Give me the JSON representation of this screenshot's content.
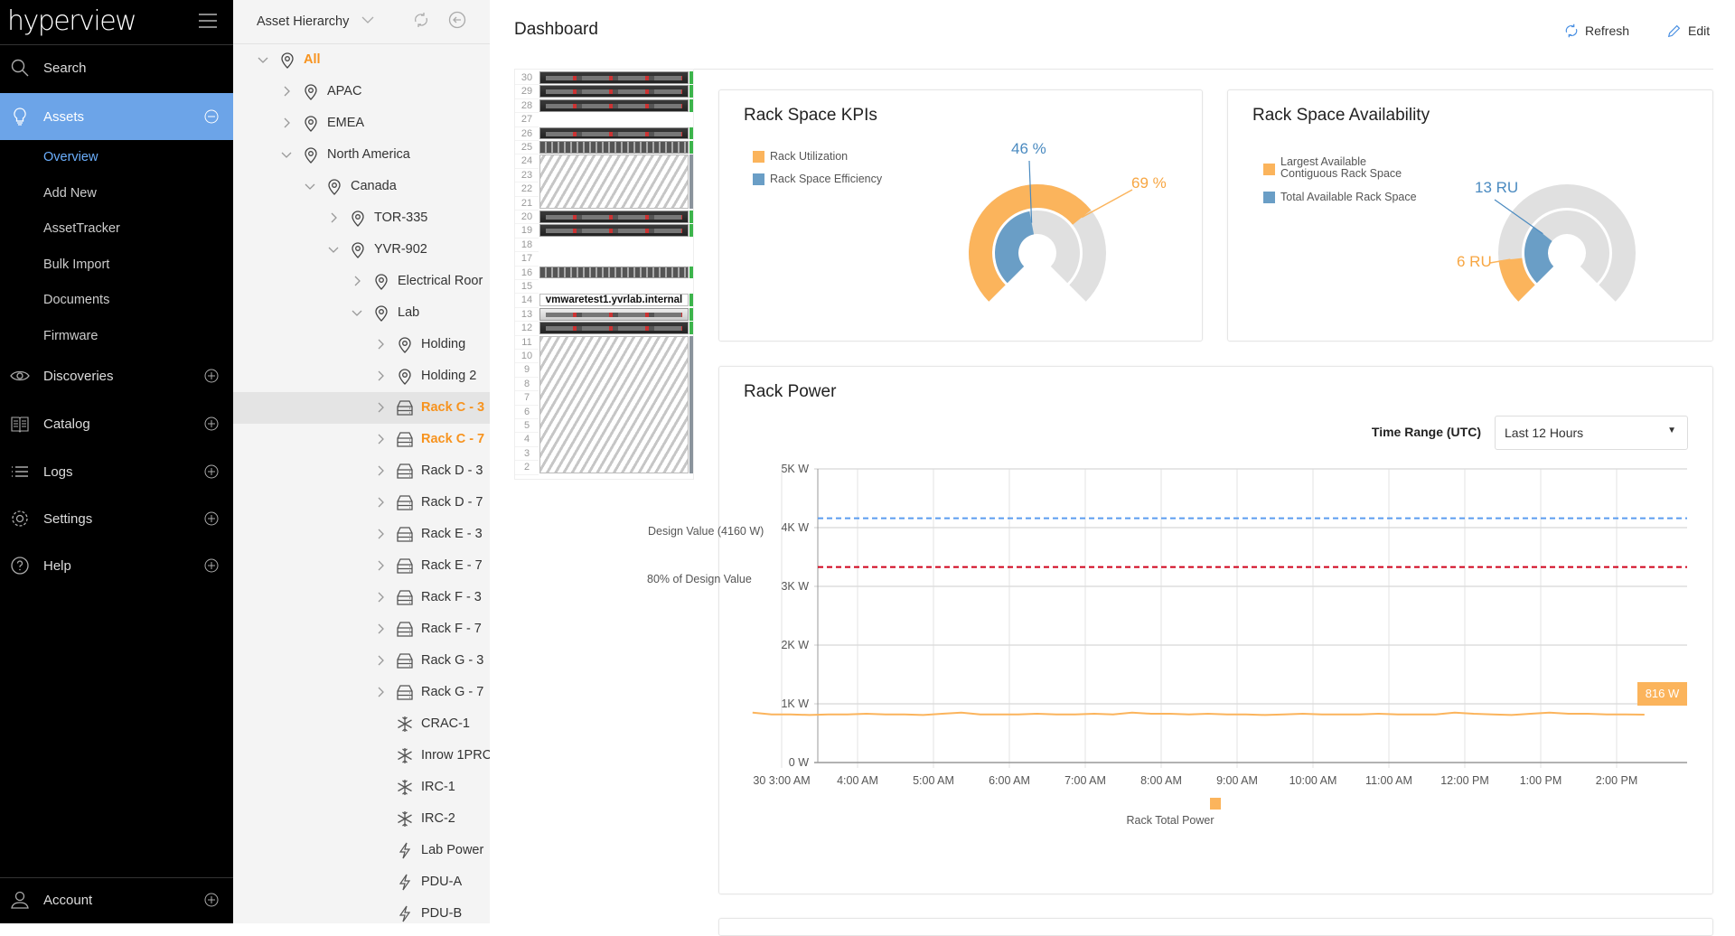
{
  "app": {
    "logo": "hyperview"
  },
  "sidebar": {
    "items": [
      {
        "label": "Search",
        "icon": "search-icon"
      },
      {
        "label": "Assets",
        "icon": "lightbulb-icon",
        "active": true
      },
      {
        "label": "Discoveries",
        "icon": "eye-icon"
      },
      {
        "label": "Catalog",
        "icon": "book-icon"
      },
      {
        "label": "Logs",
        "icon": "list-icon"
      },
      {
        "label": "Settings",
        "icon": "gear-icon"
      },
      {
        "label": "Help",
        "icon": "help-icon"
      }
    ],
    "sub_items": [
      "Overview",
      "Add New",
      "AssetTracker",
      "Bulk Import",
      "Documents",
      "Firmware"
    ],
    "active_sub": "Overview",
    "account": "Account",
    "colors": {
      "active_bg": "#6ca4e8",
      "active_sub": "#6cb0ff"
    }
  },
  "tree": {
    "title": "Asset Hierarchy",
    "nodes": [
      {
        "label": "All",
        "level": 0,
        "icon": "location",
        "state": "open",
        "highlight": true
      },
      {
        "label": "APAC",
        "level": 1,
        "icon": "location",
        "state": "closed"
      },
      {
        "label": "EMEA",
        "level": 1,
        "icon": "location",
        "state": "closed"
      },
      {
        "label": "North America",
        "level": 1,
        "icon": "location",
        "state": "open"
      },
      {
        "label": "Canada",
        "level": 2,
        "icon": "location",
        "state": "open"
      },
      {
        "label": "TOR-335",
        "level": 3,
        "icon": "location",
        "state": "closed"
      },
      {
        "label": "YVR-902",
        "level": 3,
        "icon": "location",
        "state": "open"
      },
      {
        "label": "Electrical Roor",
        "level": 4,
        "icon": "location",
        "state": "closed"
      },
      {
        "label": "Lab",
        "level": 4,
        "icon": "location",
        "state": "open"
      },
      {
        "label": "Holding",
        "level": 5,
        "icon": "location",
        "state": "closed"
      },
      {
        "label": "Holding 2",
        "level": 5,
        "icon": "location",
        "state": "closed"
      },
      {
        "label": "Rack C - 3",
        "level": 5,
        "icon": "rack",
        "state": "closed",
        "highlight": true,
        "selected": true
      },
      {
        "label": "Rack C - 7",
        "level": 5,
        "icon": "rack",
        "state": "closed",
        "highlight": true
      },
      {
        "label": "Rack D - 3",
        "level": 5,
        "icon": "rack",
        "state": "closed"
      },
      {
        "label": "Rack D - 7",
        "level": 5,
        "icon": "rack",
        "state": "closed"
      },
      {
        "label": "Rack E - 3",
        "level": 5,
        "icon": "rack",
        "state": "closed"
      },
      {
        "label": "Rack E - 7",
        "level": 5,
        "icon": "rack",
        "state": "closed"
      },
      {
        "label": "Rack F - 3",
        "level": 5,
        "icon": "rack",
        "state": "closed"
      },
      {
        "label": "Rack F - 7",
        "level": 5,
        "icon": "rack",
        "state": "closed"
      },
      {
        "label": "Rack G - 3",
        "level": 5,
        "icon": "rack",
        "state": "closed"
      },
      {
        "label": "Rack G - 7",
        "level": 5,
        "icon": "rack",
        "state": "closed"
      },
      {
        "label": "CRAC-1",
        "level": 5,
        "icon": "snowflake",
        "state": "leaf"
      },
      {
        "label": "Inrow 1PRC",
        "level": 5,
        "icon": "snowflake",
        "state": "leaf"
      },
      {
        "label": "IRC-1",
        "level": 5,
        "icon": "snowflake",
        "state": "leaf"
      },
      {
        "label": "IRC-2",
        "level": 5,
        "icon": "snowflake",
        "state": "leaf"
      },
      {
        "label": "Lab Power",
        "level": 5,
        "icon": "bolt",
        "state": "leaf"
      },
      {
        "label": "PDU-A",
        "level": 5,
        "icon": "bolt",
        "state": "leaf"
      },
      {
        "label": "PDU-B",
        "level": 5,
        "icon": "bolt",
        "state": "leaf"
      }
    ],
    "highlight_color": "#f7931e"
  },
  "header": {
    "title": "Dashboard",
    "refresh": "Refresh",
    "edit": "Edit"
  },
  "rack": {
    "unit_numbers": [
      30,
      29,
      28,
      27,
      26,
      25,
      24,
      23,
      22,
      21,
      20,
      19,
      18,
      17,
      16,
      15,
      14,
      13,
      12,
      11,
      10,
      9,
      8,
      7,
      6,
      5,
      4,
      3,
      2
    ],
    "devices": [
      {
        "top": 30,
        "size": 1,
        "kind": "server"
      },
      {
        "top": 29,
        "size": 1,
        "kind": "server"
      },
      {
        "top": 28,
        "size": 1,
        "kind": "server"
      },
      {
        "top": 26,
        "size": 1,
        "kind": "server"
      },
      {
        "top": 25,
        "size": 1,
        "kind": "switch"
      },
      {
        "top": 24,
        "size": 4,
        "kind": "reserved"
      },
      {
        "top": 20,
        "size": 1,
        "kind": "server"
      },
      {
        "top": 19,
        "size": 1,
        "kind": "server"
      },
      {
        "top": 16,
        "size": 1,
        "kind": "switch"
      },
      {
        "top": 14,
        "size": 1,
        "kind": "label",
        "label": "vmwaretest1.yvrlab.internal"
      },
      {
        "top": 13,
        "size": 1,
        "kind": "server-light"
      },
      {
        "top": 12,
        "size": 1,
        "kind": "server"
      },
      {
        "top": 11,
        "size": 10,
        "kind": "reserved"
      }
    ]
  },
  "kpi": {
    "title": "Rack Space KPIs",
    "legend": [
      "Rack Utilization",
      "Rack Space Efficiency"
    ],
    "rack_utilization_pct": 69,
    "rack_space_efficiency_pct": 46,
    "labels": {
      "utilization": "69 %",
      "efficiency": "46 %"
    },
    "colors": {
      "orange": "#fbb45c",
      "blue": "#6a9ec6",
      "track": "#e0e0e0"
    }
  },
  "availability": {
    "title": "Rack Space Availability",
    "legend": [
      "Largest Available",
      "Contiguous Rack Space",
      "Total Available Rack Space"
    ],
    "largest_contiguous_ru": 6,
    "total_available_ru": 13,
    "labels": {
      "contiguous": "6 RU",
      "total": "13 RU"
    }
  },
  "power": {
    "title": "Rack Power",
    "time_range_label": "Time Range (UTC)",
    "time_range_value": "Last 12 Hours",
    "current_label": "816 W",
    "design_label": "Design Value (4160 W)",
    "eighty_label": "80% of Design Value",
    "legend": "Rack Total Power"
  },
  "chart_data": {
    "type": "line",
    "title": "Rack Power",
    "ylim": [
      0,
      5000
    ],
    "y_ticks": [
      "0 W",
      "1K W",
      "2K W",
      "3K W",
      "4K W",
      "5K W"
    ],
    "x_ticks": [
      "30 3:00 AM",
      "4:00 AM",
      "5:00 AM",
      "6:00 AM",
      "7:00 AM",
      "8:00 AM",
      "9:00 AM",
      "10:00 AM",
      "11:00 AM",
      "12:00 PM",
      "1:00 PM",
      "2:00 PM"
    ],
    "grid": true,
    "legend_position": "bottom",
    "reference_lines": [
      {
        "name": "Design Value (4160 W)",
        "value": 4160,
        "color": "#5b9cf0",
        "style": "dashed"
      },
      {
        "name": "80% of Design Value",
        "value": 3328,
        "color": "#d0021b",
        "style": "dashed"
      }
    ],
    "series": [
      {
        "name": "Rack Total Power",
        "color": "#fbb45c",
        "x": [
          "02:37",
          "02:52",
          "03:07",
          "03:22",
          "03:37",
          "03:52",
          "04:07",
          "04:22",
          "04:37",
          "04:52",
          "05:07",
          "05:22",
          "05:37",
          "05:52",
          "06:07",
          "06:22",
          "06:37",
          "06:52",
          "07:07",
          "07:22",
          "07:37",
          "07:52",
          "08:07",
          "08:22",
          "08:37",
          "08:52",
          "09:07",
          "09:22",
          "09:37",
          "09:52",
          "10:07",
          "10:22",
          "10:37",
          "10:52",
          "11:07",
          "11:22",
          "11:37",
          "11:52",
          "12:07",
          "12:22",
          "12:37",
          "12:52",
          "13:07",
          "13:22",
          "13:37",
          "13:52",
          "14:07",
          "14:22"
        ],
        "values": [
          850,
          820,
          820,
          810,
          820,
          820,
          830,
          820,
          820,
          810,
          830,
          850,
          820,
          820,
          820,
          830,
          820,
          820,
          830,
          820,
          850,
          830,
          830,
          820,
          830,
          820,
          820,
          810,
          820,
          830,
          820,
          820,
          820,
          830,
          820,
          820,
          820,
          850,
          830,
          820,
          810,
          830,
          850,
          830,
          830,
          820,
          820,
          816
        ]
      }
    ]
  }
}
